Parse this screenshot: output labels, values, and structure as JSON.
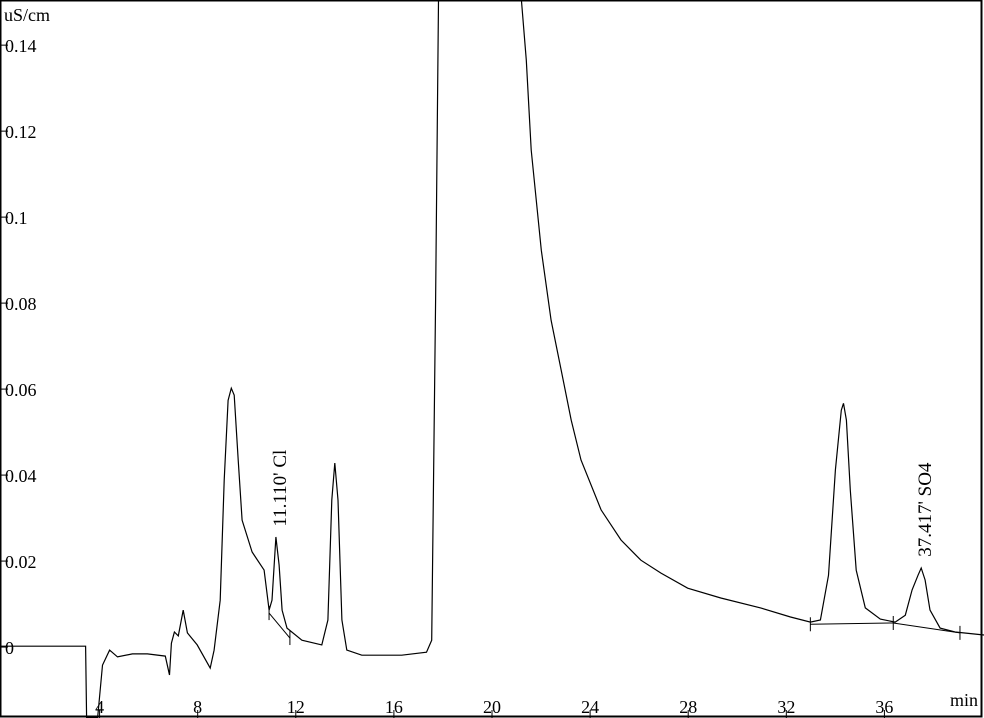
{
  "chart_data": {
    "type": "line",
    "title": "",
    "xlabel": "min",
    "ylabel": "uS/cm",
    "xlim": [
      -0.06,
      40.06
    ],
    "ylim": [
      -0.0165,
      0.1505
    ],
    "grid": false,
    "x_ticks": [
      4,
      8,
      12,
      16,
      20,
      24,
      28,
      32,
      36
    ],
    "x_tick_labels": [
      "4",
      "8",
      "12",
      "16",
      "20",
      "24",
      "28",
      "32",
      "36"
    ],
    "y_ticks": [
      0,
      0.02,
      0.04,
      0.06,
      0.08,
      0.1,
      0.12,
      0.14
    ],
    "y_tick_labels": [
      "0",
      "0.02",
      "0.04",
      "0.06",
      "0.08",
      "0.1",
      "0.12",
      "0.14"
    ],
    "line_color": "#000000",
    "series": [
      {
        "points": [
          [
            0,
            0.0002
          ],
          [
            3.43,
            0.0002
          ],
          [
            3.47,
            -0.0165
          ],
          [
            3.92,
            -0.0165
          ],
          [
            4.12,
            -0.0042
          ],
          [
            4.41,
            -0.0007
          ],
          [
            4.73,
            -0.0023
          ],
          [
            5.34,
            -0.0016
          ],
          [
            5.95,
            -0.0016
          ],
          [
            6.68,
            -0.0021
          ],
          [
            6.85,
            -0.0065
          ],
          [
            6.93,
            0.0009
          ],
          [
            7.05,
            0.0035
          ],
          [
            7.21,
            0.0026
          ],
          [
            7.41,
            0.0086
          ],
          [
            7.58,
            0.0033
          ],
          [
            7.98,
            0.0005
          ],
          [
            8.51,
            -0.0049
          ],
          [
            8.67,
            -0.0007
          ],
          [
            8.92,
            0.0109
          ],
          [
            9.08,
            0.0388
          ],
          [
            9.24,
            0.0574
          ],
          [
            9.37,
            0.0602
          ],
          [
            9.49,
            0.0586
          ],
          [
            9.65,
            0.0435
          ],
          [
            9.81,
            0.0295
          ],
          [
            10.22,
            0.0221
          ],
          [
            10.71,
            0.0179
          ],
          [
            10.91,
            0.0086
          ],
          [
            11.03,
            0.0109
          ],
          [
            11.19,
            0.0256
          ],
          [
            11.32,
            0.0191
          ],
          [
            11.44,
            0.0086
          ],
          [
            11.64,
            0.0044
          ],
          [
            12.25,
            0.0016
          ],
          [
            13.06,
            0.0005
          ],
          [
            13.31,
            0.0063
          ],
          [
            13.47,
            0.0342
          ],
          [
            13.59,
            0.0428
          ],
          [
            13.72,
            0.0342
          ],
          [
            13.88,
            0.0063
          ],
          [
            14.08,
            -0.0007
          ],
          [
            14.69,
            -0.0019
          ],
          [
            16.32,
            -0.0019
          ],
          [
            17.33,
            -0.0012
          ],
          [
            17.54,
            0.0016
          ],
          [
            17.7,
            0.0807
          ],
          [
            17.82,
            0.1505
          ],
          [
            21.2,
            0.1505
          ],
          [
            21.4,
            0.1365
          ],
          [
            21.6,
            0.1156
          ],
          [
            22.01,
            0.0923
          ],
          [
            22.41,
            0.076
          ],
          [
            22.82,
            0.0644
          ],
          [
            23.23,
            0.0528
          ],
          [
            23.63,
            0.0435
          ],
          [
            24.45,
            0.0319
          ],
          [
            25.26,
            0.0249
          ],
          [
            26.07,
            0.0202
          ],
          [
            26.89,
            0.0172
          ],
          [
            27.98,
            0.0137
          ],
          [
            29.33,
            0.0114
          ],
          [
            30.95,
            0.0091
          ],
          [
            32.17,
            0.007
          ],
          [
            32.98,
            0.0058
          ],
          [
            33.39,
            0.0063
          ],
          [
            33.72,
            0.0167
          ],
          [
            34.0,
            0.0412
          ],
          [
            34.24,
            0.0551
          ],
          [
            34.33,
            0.0567
          ],
          [
            34.45,
            0.0528
          ],
          [
            34.61,
            0.0365
          ],
          [
            34.85,
            0.0179
          ],
          [
            35.22,
            0.0091
          ],
          [
            35.83,
            0.0065
          ],
          [
            36.44,
            0.0058
          ],
          [
            36.85,
            0.0074
          ],
          [
            37.13,
            0.0133
          ],
          [
            37.37,
            0.0167
          ],
          [
            37.5,
            0.0184
          ],
          [
            37.66,
            0.0156
          ],
          [
            37.86,
            0.0086
          ],
          [
            38.27,
            0.0044
          ],
          [
            38.88,
            0.0035
          ],
          [
            40.06,
            0.0028
          ]
        ]
      }
    ],
    "baselines": [
      [
        [
          10.91,
          0.0079
        ],
        [
          11.76,
          0.0021
        ]
      ],
      [
        [
          32.98,
          0.0053
        ],
        [
          36.36,
          0.0056
        ],
        [
          39.08,
          0.0033
        ]
      ]
    ],
    "annotations": [
      {
        "text": "11.110' Cl",
        "x": 11.6,
        "y": 0.028
      },
      {
        "text": "37.417' SO4",
        "x": 37.9,
        "y": 0.021
      }
    ]
  }
}
